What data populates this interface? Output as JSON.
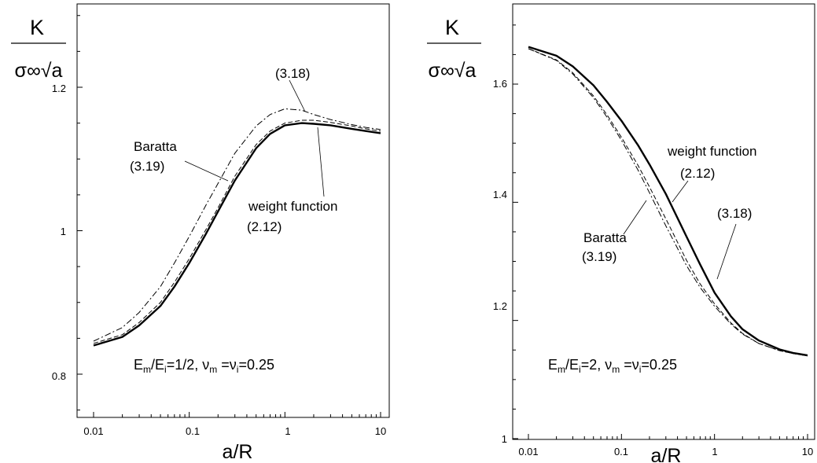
{
  "chart_data": [
    {
      "type": "line",
      "xscale": "log",
      "xlim": [
        0.01,
        10
      ],
      "ylim": [
        0.75,
        1.33
      ],
      "xlabel": "a/R",
      "ylabel": {
        "numerator": "K",
        "denominator": "σ∞√a"
      },
      "condition": "Em/Ei=1/2, νm=νi=0.25",
      "x_ticks": [
        0.01,
        0.1,
        1,
        10
      ],
      "x_tick_labels": [
        "0.01",
        "0.1",
        "1",
        "10"
      ],
      "y_ticks": [
        0.8,
        1.0,
        1.2
      ],
      "y_tick_labels": [
        "0.8",
        "1",
        "1.2"
      ],
      "grid": false,
      "annotations": [
        {
          "lines": [
            "(3.18)"
          ]
        },
        {
          "lines": [
            "Baratta",
            "(3.19)"
          ]
        },
        {
          "lines": [
            "weight function",
            "(2.12)"
          ]
        }
      ],
      "series": [
        {
          "style": "solid",
          "x": [
            0.01,
            0.02,
            0.03,
            0.05,
            0.07,
            0.1,
            0.15,
            0.2,
            0.3,
            0.5,
            0.7,
            1.0,
            1.5,
            2.0,
            3.0,
            5.0,
            7.0,
            10.0
          ],
          "y": [
            0.84,
            0.852,
            0.868,
            0.895,
            0.922,
            0.955,
            0.996,
            1.027,
            1.07,
            1.115,
            1.135,
            1.147,
            1.15,
            1.149,
            1.147,
            1.142,
            1.139,
            1.136
          ]
        },
        {
          "style": "dashed",
          "x": [
            0.01,
            0.02,
            0.03,
            0.05,
            0.07,
            0.1,
            0.15,
            0.2,
            0.3,
            0.5,
            0.7,
            1.0,
            1.5,
            2.0,
            3.0,
            5.0,
            7.0,
            10.0
          ],
          "y": [
            0.843,
            0.855,
            0.872,
            0.9,
            0.928,
            0.961,
            1.002,
            1.032,
            1.076,
            1.12,
            1.139,
            1.15,
            1.154,
            1.154,
            1.151,
            1.146,
            1.142,
            1.139
          ]
        },
        {
          "style": "dashdot",
          "x": [
            0.01,
            0.02,
            0.03,
            0.05,
            0.07,
            0.1,
            0.15,
            0.2,
            0.3,
            0.5,
            0.7,
            1.0,
            1.5,
            2.0,
            3.0,
            5.0,
            7.0,
            10.0
          ],
          "y": [
            0.846,
            0.865,
            0.886,
            0.922,
            0.955,
            0.992,
            1.036,
            1.066,
            1.108,
            1.146,
            1.162,
            1.17,
            1.168,
            1.162,
            1.155,
            1.148,
            1.144,
            1.141
          ]
        }
      ]
    },
    {
      "type": "line",
      "xscale": "log",
      "xlim": [
        0.01,
        10
      ],
      "ylim": [
        1.0,
        1.74
      ],
      "xlabel": "a/R",
      "ylabel": {
        "numerator": "K",
        "denominator": "σ∞√a"
      },
      "condition": "Em/Ei=2, νm=νi=0.25",
      "x_ticks": [
        0.01,
        0.1,
        1,
        10
      ],
      "x_tick_labels": [
        "0.01",
        "0.1",
        "1",
        "10"
      ],
      "y_ticks": [
        1.0,
        1.2,
        1.4,
        1.6
      ],
      "y_tick_labels": [
        "1",
        "1.2",
        "1.4",
        "1.6"
      ],
      "grid": false,
      "annotations": [
        {
          "lines": [
            "weight function",
            "(2.12)"
          ]
        },
        {
          "lines": [
            "(3.18)"
          ]
        },
        {
          "lines": [
            "Baratta",
            "(3.19)"
          ]
        }
      ],
      "series": [
        {
          "style": "solid",
          "x": [
            0.01,
            0.02,
            0.03,
            0.05,
            0.07,
            0.1,
            0.15,
            0.2,
            0.3,
            0.5,
            0.7,
            1.0,
            1.5,
            2.0,
            3.0,
            5.0,
            7.0,
            10.0
          ],
          "y": [
            1.663,
            1.648,
            1.63,
            1.598,
            1.57,
            1.538,
            1.497,
            1.464,
            1.414,
            1.342,
            1.295,
            1.247,
            1.207,
            1.185,
            1.166,
            1.151,
            1.145,
            1.141
          ]
        },
        {
          "style": "dashed",
          "x": [
            0.01,
            0.02,
            0.03,
            0.05,
            0.07,
            0.1,
            0.15,
            0.2,
            0.3,
            0.5,
            0.7,
            1.0,
            1.5,
            2.0,
            3.0,
            5.0,
            7.0,
            10.0
          ],
          "y": [
            1.66,
            1.641,
            1.619,
            1.58,
            1.548,
            1.51,
            1.463,
            1.426,
            1.372,
            1.302,
            1.262,
            1.228,
            1.196,
            1.178,
            1.161,
            1.149,
            1.144,
            1.14
          ]
        },
        {
          "style": "dashdot",
          "x": [
            0.01,
            0.02,
            0.03,
            0.05,
            0.07,
            0.1,
            0.15,
            0.2,
            0.3,
            0.5,
            0.7,
            1.0,
            1.5,
            2.0,
            3.0,
            5.0,
            7.0,
            10.0
          ],
          "y": [
            1.66,
            1.64,
            1.617,
            1.577,
            1.544,
            1.505,
            1.455,
            1.416,
            1.36,
            1.293,
            1.256,
            1.224,
            1.194,
            1.177,
            1.161,
            1.149,
            1.144,
            1.14
          ]
        }
      ]
    }
  ]
}
